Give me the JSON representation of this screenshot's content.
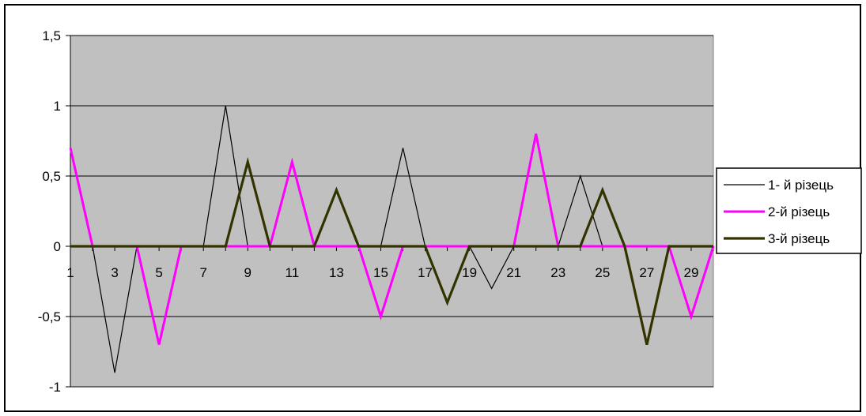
{
  "chart_data": {
    "type": "line",
    "title": "",
    "xlabel": "",
    "ylabel": "",
    "ylim": [
      -1,
      1.5
    ],
    "y_ticks": [
      "-1",
      "-0,5",
      "0",
      "0,5",
      "1",
      "1,5"
    ],
    "y_tick_values": [
      -1,
      -0.5,
      0,
      0.5,
      1,
      1.5
    ],
    "x": [
      1,
      2,
      3,
      4,
      5,
      6,
      7,
      8,
      9,
      10,
      11,
      12,
      13,
      14,
      15,
      16,
      17,
      18,
      19,
      20,
      21,
      22,
      23,
      24,
      25,
      26,
      27,
      28,
      29,
      30
    ],
    "x_tick_labels": [
      "1",
      "3",
      "5",
      "7",
      "9",
      "11",
      "13",
      "15",
      "17",
      "19",
      "21",
      "23",
      "25",
      "27",
      "29"
    ],
    "x_tick_values": [
      1,
      3,
      5,
      7,
      9,
      11,
      13,
      15,
      17,
      19,
      21,
      23,
      25,
      27,
      29
    ],
    "plot_background": "#c0c0c0",
    "grid": true,
    "legend_position": "right",
    "series": [
      {
        "name": "1- й різець",
        "color": "#000000",
        "values": [
          0,
          0,
          -0.9,
          0,
          0,
          0,
          0,
          1,
          0,
          0,
          0,
          0,
          0,
          0,
          0,
          0.7,
          0,
          0,
          0,
          -0.3,
          0,
          0,
          0,
          0.5,
          0,
          0,
          0,
          0,
          0,
          0
        ]
      },
      {
        "name": "2-й різець",
        "color": "#ff00ff",
        "values": [
          0.7,
          0,
          0,
          0,
          -0.7,
          0,
          0,
          0,
          0,
          0,
          0.6,
          0,
          0,
          0,
          -0.5,
          0,
          0,
          0,
          0,
          0,
          0,
          0.8,
          0,
          0,
          0,
          0,
          0,
          0,
          -0.5,
          0
        ]
      },
      {
        "name": "3-й різець",
        "color": "#333300",
        "values": [
          0,
          0,
          0,
          0,
          0,
          0,
          0,
          0,
          0.6,
          0,
          0,
          0,
          0.4,
          0,
          0,
          0,
          0,
          -0.4,
          0,
          0,
          0,
          0,
          0,
          0,
          0.4,
          0,
          -0.7,
          0,
          0,
          0
        ]
      }
    ]
  }
}
